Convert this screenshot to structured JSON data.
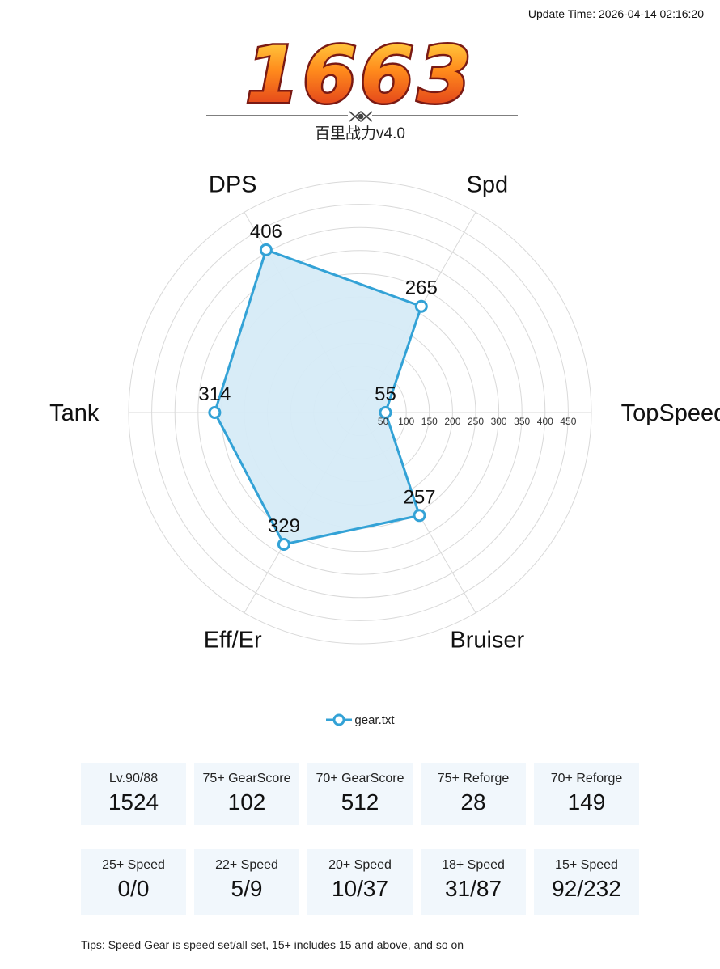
{
  "update_time": "Update Time: 2026-04-14 02:16:20",
  "score": "1663",
  "subtitle": "百里战力v4.0",
  "chart_data": {
    "type": "radar",
    "axes": [
      "DPS",
      "Spd",
      "TopSpeed",
      "Bruiser",
      "Eff/Er",
      "Tank"
    ],
    "rlim": [
      0,
      500
    ],
    "radial_ticks": [
      50,
      100,
      150,
      200,
      250,
      300,
      350,
      400,
      450
    ],
    "grid": true,
    "series": [
      {
        "name": "gear.txt",
        "values": [
          406,
          265,
          55,
          257,
          329,
          314
        ]
      }
    ],
    "legend": "bottom-center",
    "colors": {
      "line": "#33a2d6",
      "fill": "#d6ebf7",
      "grid": "#d9d9d9"
    }
  },
  "legend_label": "gear.txt",
  "stats_row1": [
    {
      "label": "Lv.90/88",
      "value": "1524"
    },
    {
      "label": "75+ GearScore",
      "value": "102"
    },
    {
      "label": "70+ GearScore",
      "value": "512"
    },
    {
      "label": "75+ Reforge",
      "value": "28"
    },
    {
      "label": "70+ Reforge",
      "value": "149"
    }
  ],
  "stats_row2": [
    {
      "label": "25+ Speed",
      "value": "0/0"
    },
    {
      "label": "22+ Speed",
      "value": "5/9"
    },
    {
      "label": "20+ Speed",
      "value": "10/37"
    },
    {
      "label": "18+ Speed",
      "value": "31/87"
    },
    {
      "label": "15+ Speed",
      "value": "92/232"
    }
  ],
  "tips": "Tips: Speed Gear is speed set/all set, 15+ includes 15 and above, and so on"
}
